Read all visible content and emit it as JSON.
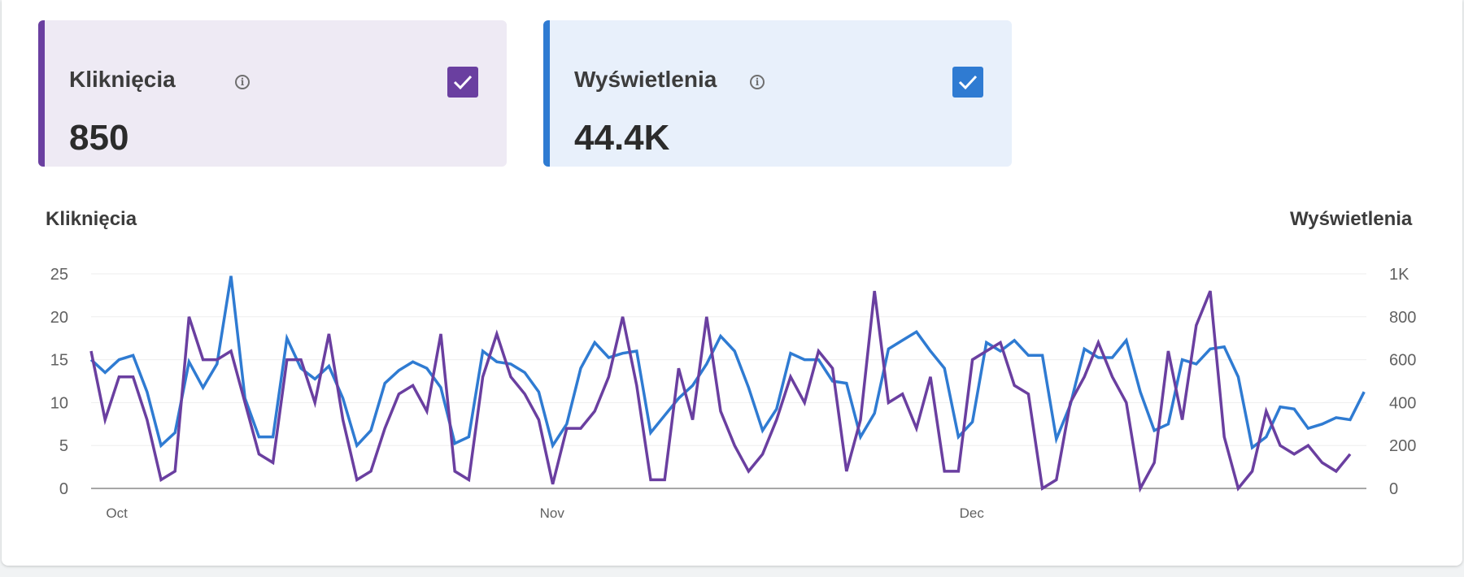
{
  "colors": {
    "clicks": "#6a3fa0",
    "impressions": "#2f7bd2",
    "clicks_card_bg": "#eeeaf4",
    "impressions_card_bg": "#e8f0fb"
  },
  "cards": [
    {
      "label": "Kliknięcia",
      "value": "850",
      "checked": true,
      "icon": "info-icon"
    },
    {
      "label": "Wyświetlenia",
      "value": "44.4K",
      "checked": true,
      "icon": "info-icon"
    }
  ],
  "chart_data": {
    "type": "line",
    "left_axis_title": "Kliknięcia",
    "right_axis_title": "Wyświetlenia",
    "left_ticks": [
      "0",
      "5",
      "10",
      "15",
      "20",
      "25"
    ],
    "right_ticks": [
      "0",
      "200",
      "400",
      "600",
      "800",
      "1K"
    ],
    "left_range": [
      0,
      25
    ],
    "right_range": [
      0,
      1000
    ],
    "x_labels": [
      {
        "label": "Oct",
        "index": 2
      },
      {
        "label": "Nov",
        "index": 33
      },
      {
        "label": "Dec",
        "index": 63
      }
    ],
    "grid": true,
    "series": [
      {
        "name": "Kliknięcia",
        "axis": "left",
        "values": [
          16,
          8,
          13,
          13,
          8,
          1,
          2,
          20,
          15,
          15,
          16,
          10,
          4,
          3,
          15,
          15,
          10,
          18,
          8,
          1,
          2,
          7,
          11,
          12,
          9,
          18,
          2,
          1,
          13,
          18,
          13,
          11,
          8,
          0.5,
          7,
          7,
          9,
          13,
          20,
          12,
          1,
          1,
          14,
          8,
          20,
          9,
          5,
          2,
          4,
          8,
          13,
          10,
          16,
          14,
          2,
          8,
          23,
          10,
          11,
          7,
          13,
          2,
          2,
          15,
          16,
          17,
          12,
          11,
          0,
          1,
          10,
          13,
          17,
          13,
          10,
          0,
          3,
          16,
          8,
          19,
          23,
          6,
          0,
          2,
          9,
          5,
          4,
          5,
          3,
          2,
          4
        ],
        "color": "#6a3fa0"
      },
      {
        "name": "Wyświetlenia",
        "axis": "right",
        "values": [
          600,
          540,
          600,
          620,
          450,
          200,
          260,
          590,
          470,
          580,
          990,
          420,
          240,
          240,
          700,
          560,
          510,
          570,
          420,
          200,
          270,
          490,
          550,
          590,
          560,
          470,
          210,
          240,
          640,
          590,
          580,
          540,
          450,
          200,
          300,
          560,
          680,
          610,
          630,
          640,
          260,
          340,
          420,
          480,
          580,
          710,
          640,
          470,
          270,
          370,
          630,
          600,
          600,
          500,
          490,
          240,
          350,
          650,
          690,
          730,
          640,
          560,
          240,
          310,
          680,
          640,
          690,
          620,
          620,
          230,
          390,
          650,
          610,
          610,
          690,
          450,
          270,
          300,
          600,
          580,
          650,
          660,
          520,
          190,
          240,
          380,
          370,
          280,
          300,
          330,
          320,
          450
        ],
        "color": "#2f7bd2"
      }
    ]
  }
}
